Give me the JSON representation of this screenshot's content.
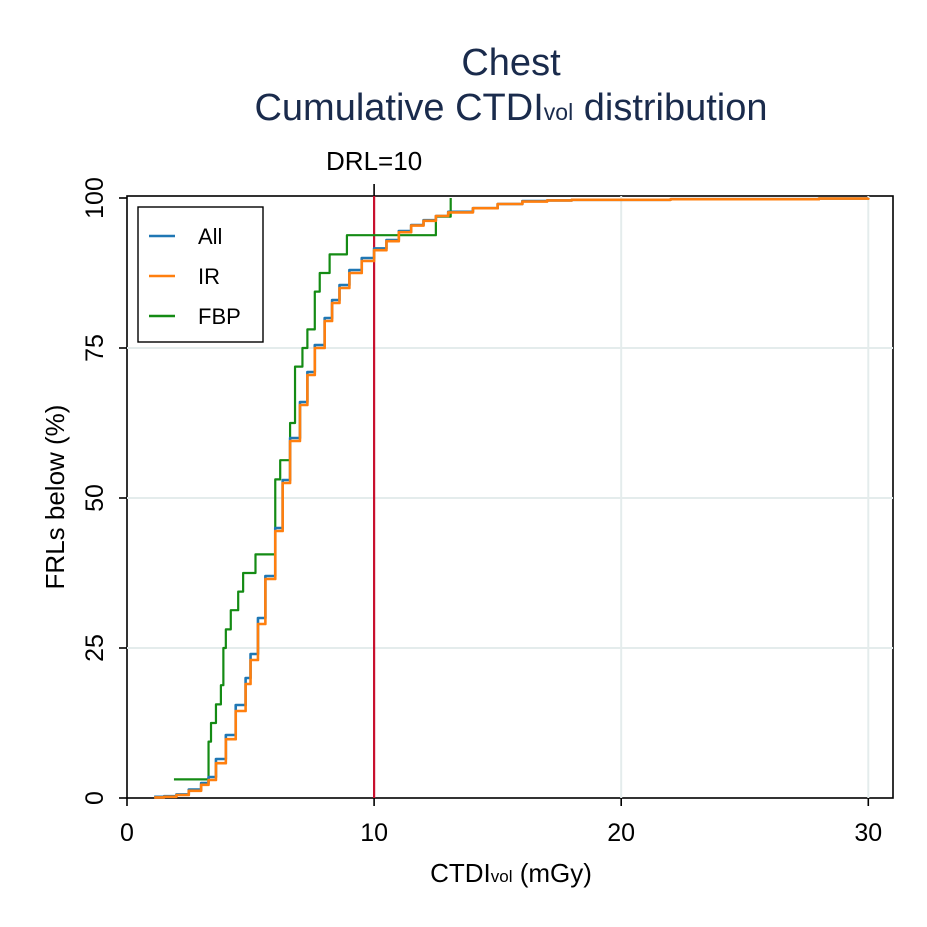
{
  "chart_data": {
    "type": "line",
    "title_line1": "Chest",
    "title_line2_main": "Cumulative CTDI",
    "title_line2_sub": "vol",
    "title_line2_tail": " distribution",
    "xlabel_main": "CTDI",
    "xlabel_sub": "vol",
    "xlabel_tail": " (mGy)",
    "ylabel": "FRLs below (%)",
    "xlim": [
      0,
      31
    ],
    "ylim": [
      0,
      100
    ],
    "x_ticks": [
      0,
      10,
      20,
      30
    ],
    "y_ticks": [
      0,
      25,
      50,
      75,
      100
    ],
    "x_tick_labels": [
      "0",
      "10",
      "20",
      "30"
    ],
    "y_tick_labels": [
      "0",
      "25",
      "50",
      "75",
      "100"
    ],
    "grid": true,
    "legend_position": "top-left",
    "reference_line": {
      "x": 10,
      "label": "DRL=10",
      "color": "#c8102e"
    },
    "series": [
      {
        "name": "All",
        "color": "#1f77b4",
        "x": [
          1.1,
          1.5,
          2.0,
          2.5,
          3.0,
          3.3,
          3.6,
          4.0,
          4.4,
          4.8,
          5.0,
          5.3,
          5.6,
          6.0,
          6.3,
          6.6,
          7.0,
          7.3,
          7.6,
          8.0,
          8.3,
          8.6,
          9.0,
          9.5,
          10.0,
          10.5,
          11.0,
          11.5,
          12.0,
          12.5,
          13.0,
          14.0,
          15.0,
          16.0,
          17.0,
          18.0,
          20.0,
          22.0,
          25.0,
          28.0,
          30.0
        ],
        "y": [
          0.2,
          0.3,
          0.6,
          1.4,
          2.5,
          3.5,
          6.5,
          10.5,
          15.5,
          20.0,
          24.0,
          30.0,
          37.0,
          45.0,
          53.0,
          60.0,
          66.0,
          71.0,
          75.5,
          80.0,
          83.0,
          85.5,
          88.0,
          90.0,
          91.6,
          93.0,
          94.5,
          95.5,
          96.3,
          97.0,
          97.7,
          98.3,
          99.0,
          99.5,
          99.6,
          99.7,
          99.7,
          99.8,
          99.8,
          99.9,
          100.0
        ]
      },
      {
        "name": "IR",
        "color": "#ff7f0e",
        "x": [
          1.1,
          1.5,
          2.0,
          2.5,
          3.0,
          3.3,
          3.6,
          4.0,
          4.4,
          4.8,
          5.0,
          5.3,
          5.6,
          6.0,
          6.3,
          6.6,
          7.0,
          7.3,
          7.6,
          8.0,
          8.3,
          8.6,
          9.0,
          9.5,
          10.0,
          10.5,
          11.0,
          11.5,
          12.0,
          12.5,
          13.0,
          14.0,
          15.0,
          16.0,
          17.0,
          18.0,
          20.0,
          22.0,
          25.0,
          28.0,
          30.0
        ],
        "y": [
          0.1,
          0.2,
          0.5,
          1.2,
          2.2,
          3.0,
          5.8,
          9.8,
          14.5,
          19.0,
          23.0,
          29.0,
          36.5,
          44.5,
          52.5,
          59.5,
          65.5,
          70.5,
          75.0,
          79.5,
          82.5,
          85.0,
          87.5,
          89.5,
          91.3,
          92.8,
          94.3,
          95.4,
          96.2,
          97.0,
          97.6,
          98.3,
          99.0,
          99.4,
          99.6,
          99.7,
          99.7,
          99.8,
          99.8,
          99.9,
          100.0
        ]
      },
      {
        "name": "FBP",
        "color": "#148b14",
        "x": [
          1.9,
          3.3,
          3.4,
          3.6,
          3.8,
          3.9,
          4.0,
          4.2,
          4.5,
          4.7,
          5.2,
          6.0,
          6.2,
          6.6,
          6.8,
          7.1,
          7.3,
          7.6,
          7.8,
          8.2,
          8.9,
          12.5,
          13.1
        ],
        "y": [
          3.1,
          9.4,
          12.5,
          15.6,
          18.8,
          25.0,
          28.1,
          31.3,
          34.4,
          37.5,
          40.6,
          53.1,
          56.3,
          62.5,
          71.9,
          75.0,
          78.1,
          84.4,
          87.5,
          90.6,
          93.8,
          96.9,
          100.0
        ]
      }
    ]
  }
}
